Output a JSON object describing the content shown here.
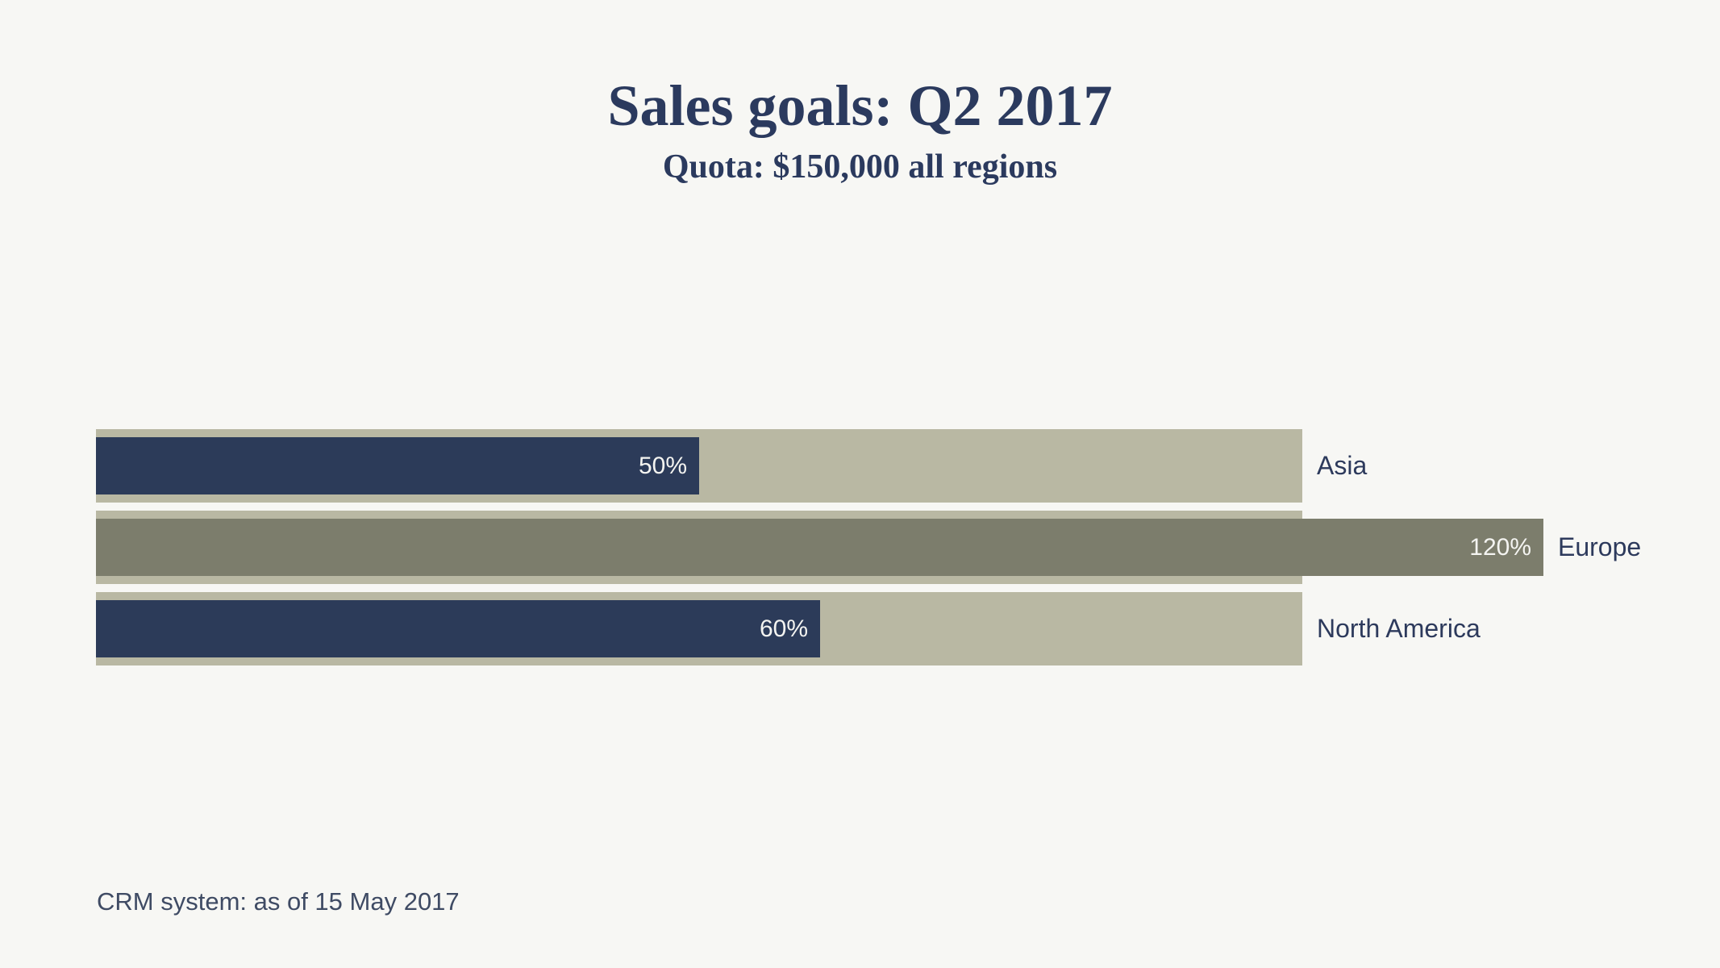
{
  "title": "Sales goals: Q2 2017",
  "subtitle": "Quota: $150,000 all regions",
  "footer": "CRM system: as of 15 May 2017",
  "colors": {
    "background": "#f7f7f4",
    "quota_track": "#b9b8a3",
    "bar_navy": "#2c3b59",
    "bar_olive": "#7c7d6c",
    "heading_text": "#2b3a5e",
    "label_text": "#2d3a5c",
    "value_text": "#f4f4f1",
    "footer_text": "#3f4b64"
  },
  "chart_data": {
    "type": "bar",
    "orientation": "horizontal",
    "title": "Sales goals: Q2 2017",
    "subtitle": "Quota: $150,000 all regions",
    "categories": [
      "Asia",
      "Europe",
      "North America"
    ],
    "values": [
      50,
      120,
      60
    ],
    "value_labels": [
      "50%",
      "120%",
      "60%"
    ],
    "unit": "percent of quota",
    "quota_reference_pct": 100,
    "xlim": [
      0,
      120
    ],
    "grid": false,
    "legend": false,
    "bar_colors": [
      "#2c3b59",
      "#7c7d6c",
      "#2c3b59"
    ],
    "track_color": "#b9b8a3",
    "annotation": "CRM system: as of 15 May 2017"
  },
  "rows": [
    {
      "label": "Asia",
      "value": 50,
      "value_label": "50%",
      "color": "#2c3b59"
    },
    {
      "label": "Europe",
      "value": 120,
      "value_label": "120%",
      "color": "#7c7d6c"
    },
    {
      "label": "North America",
      "value": 60,
      "value_label": "60%",
      "color": "#2c3b59"
    }
  ]
}
